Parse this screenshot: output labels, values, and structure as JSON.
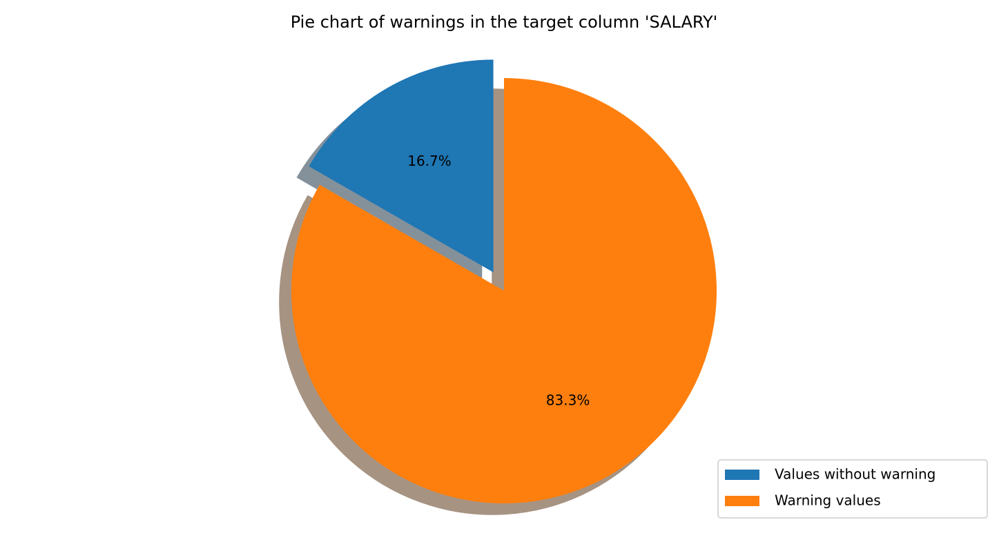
{
  "chart_data": {
    "type": "pie",
    "title": "Pie chart of warnings in the target column 'SALARY'",
    "categories": [
      "Values without warning",
      "Warning values"
    ],
    "values": [
      16.7,
      83.3
    ],
    "value_labels": [
      "16.7%",
      "83.3%"
    ],
    "colors": [
      "#1f77b4",
      "#ff7f0e"
    ],
    "explode": [
      true,
      false
    ],
    "shadow": true,
    "legend": "lower right"
  }
}
